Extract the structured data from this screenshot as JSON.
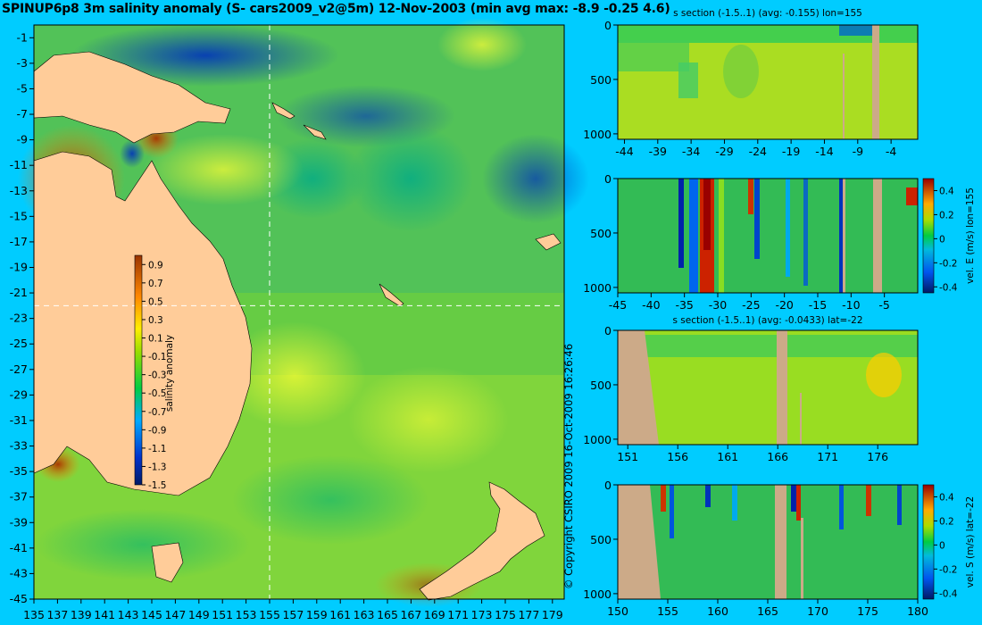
{
  "title": "SPINUP6p8 3m salinity anomaly (S- cars2009_v2@5m) 12-Nov-2003 (min avg max: -8.9 -0.25 4.6)",
  "copyright": "© Copyright CSIRO 2009   16-Oct-2009 16:26:46",
  "colors": {
    "background": "#00ccff",
    "land": "#ffcc99",
    "section_land": "#ccaa88",
    "crosshair": "#ffffff"
  },
  "chart_data": [
    {
      "type": "heatmap",
      "id": "map",
      "title": "",
      "xlabel": "",
      "ylabel": "",
      "x_ticks": [
        135,
        137,
        139,
        141,
        143,
        145,
        147,
        149,
        151,
        153,
        155,
        157,
        159,
        161,
        163,
        165,
        167,
        169,
        171,
        173,
        175,
        177,
        179
      ],
      "y_ticks": [
        -1,
        -3,
        -5,
        -7,
        -9,
        -11,
        -13,
        -15,
        -17,
        -19,
        -21,
        -23,
        -25,
        -27,
        -29,
        -31,
        -33,
        -35,
        -37,
        -39,
        -41,
        -43,
        -45
      ],
      "xlim": [
        135,
        180
      ],
      "ylim": [
        -45,
        0
      ],
      "crosshair": {
        "lon": 155,
        "lat": -22
      },
      "colorbar": {
        "label": "salinity anomaly",
        "ticks": [
          0.9,
          0.7,
          0.5,
          0.3,
          0.1,
          -0.1,
          -0.3,
          -0.5,
          -0.7,
          -0.9,
          -1.1,
          -1.3,
          -1.5
        ],
        "range": [
          -1.5,
          1.0
        ]
      }
    },
    {
      "type": "heatmap",
      "id": "panel1",
      "title": "s section (-1.5..1) (avg: -0.155) lon=155",
      "x_ticks": [
        -44,
        -39,
        -34,
        -29,
        -24,
        -19,
        -14,
        -9,
        -4
      ],
      "y_ticks": [
        0,
        500,
        1000
      ],
      "xlim": [
        -45,
        0
      ],
      "ylim": [
        1050,
        0
      ]
    },
    {
      "type": "heatmap",
      "id": "panel2",
      "title": "",
      "x_ticks": [
        -45,
        -40,
        -35,
        -30,
        -25,
        -20,
        -15,
        -10,
        -5
      ],
      "y_ticks": [
        0,
        500,
        1000
      ],
      "xlim": [
        -45,
        0
      ],
      "ylim": [
        1050,
        0
      ],
      "colorbar": {
        "label": "vel. E (m/s) lon=155",
        "ticks": [
          0.4,
          0.2,
          0,
          -0.2,
          -0.4
        ],
        "range": [
          -0.45,
          0.5
        ]
      }
    },
    {
      "type": "heatmap",
      "id": "panel3",
      "title": "s section (-1.5..1) (avg: -0.0433) lat=-22",
      "x_ticks": [
        151,
        156,
        161,
        166,
        171,
        176
      ],
      "y_ticks": [
        0,
        500,
        1000
      ],
      "xlim": [
        150,
        180
      ],
      "ylim": [
        1050,
        0
      ]
    },
    {
      "type": "heatmap",
      "id": "panel4",
      "title": "",
      "x_ticks": [
        150,
        155,
        160,
        165,
        170,
        175,
        180
      ],
      "y_ticks": [
        0,
        500,
        1000
      ],
      "xlim": [
        150,
        180
      ],
      "ylim": [
        1050,
        0
      ],
      "colorbar": {
        "label": "vel. S (m/s) lat=-22",
        "ticks": [
          0.4,
          0.2,
          0,
          -0.2,
          -0.4
        ],
        "range": [
          -0.45,
          0.5
        ]
      }
    }
  ]
}
